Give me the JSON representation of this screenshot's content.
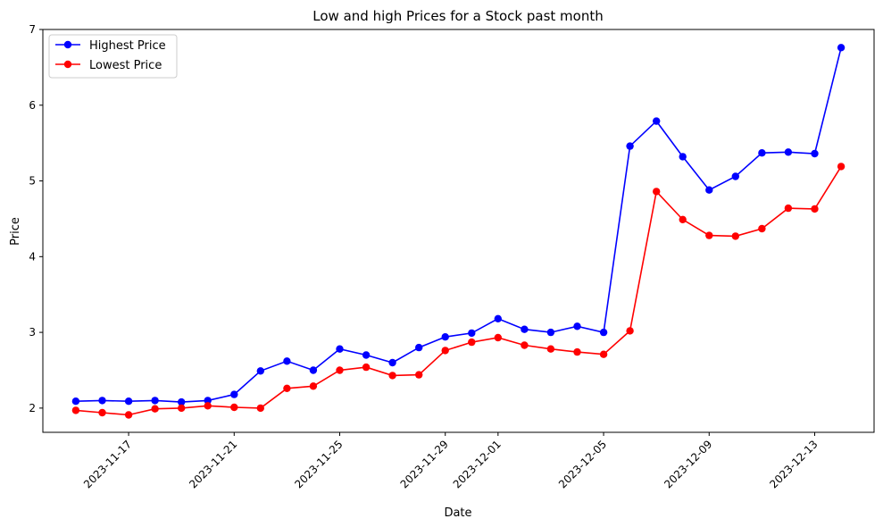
{
  "chart_data": {
    "type": "line",
    "title": "Low and high Prices for a Stock past month",
    "xlabel": "Date",
    "ylabel": "Price",
    "x": [
      "2023-11-15",
      "2023-11-16",
      "2023-11-17",
      "2023-11-18",
      "2023-11-19",
      "2023-11-20",
      "2023-11-21",
      "2023-11-22",
      "2023-11-23",
      "2023-11-24",
      "2023-11-25",
      "2023-11-26",
      "2023-11-27",
      "2023-11-28",
      "2023-11-29",
      "2023-11-30",
      "2023-12-01",
      "2023-12-02",
      "2023-12-03",
      "2023-12-04",
      "2023-12-05",
      "2023-12-06",
      "2023-12-07",
      "2023-12-08",
      "2023-12-09",
      "2023-12-10",
      "2023-12-11",
      "2023-12-12",
      "2023-12-13",
      "2023-12-14"
    ],
    "x_ticks": [
      "2023-11-17",
      "2023-11-21",
      "2023-11-25",
      "2023-11-29",
      "2023-12-01",
      "2023-12-05",
      "2023-12-09",
      "2023-12-13"
    ],
    "y_ticks": [
      2,
      3,
      4,
      5,
      6,
      7
    ],
    "ylim": [
      1.68,
      7.0
    ],
    "xlim": [
      "2023-11-13T18:00",
      "2023-12-15T06:00"
    ],
    "grid": false,
    "legend_position": "top-left",
    "series": [
      {
        "name": "Highest Price",
        "color": "#0000ff",
        "values": [
          2.09,
          2.1,
          2.09,
          2.1,
          2.08,
          2.1,
          2.18,
          2.49,
          2.62,
          2.5,
          2.78,
          2.7,
          2.6,
          2.8,
          2.94,
          2.99,
          3.18,
          3.04,
          3.0,
          3.08,
          3.0,
          5.46,
          5.79,
          5.32,
          4.88,
          5.06,
          5.37,
          5.38,
          5.36,
          6.76
        ]
      },
      {
        "name": "Lowest Price",
        "color": "#ff0000",
        "values": [
          1.97,
          1.94,
          1.91,
          1.99,
          2.0,
          2.03,
          2.01,
          2.0,
          2.26,
          2.29,
          2.5,
          2.54,
          2.43,
          2.44,
          2.76,
          2.87,
          2.93,
          2.83,
          2.78,
          2.74,
          2.71,
          3.02,
          4.86,
          4.49,
          4.28,
          4.27,
          4.37,
          4.64,
          4.63,
          5.19
        ]
      }
    ]
  }
}
